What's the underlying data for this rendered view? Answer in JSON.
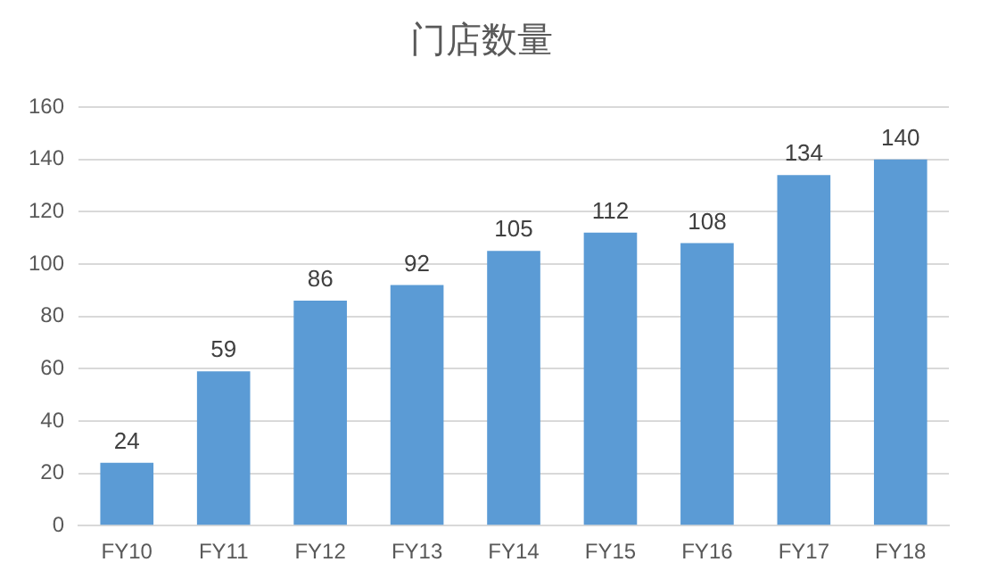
{
  "chart_data": {
    "type": "bar",
    "title": "门店数量",
    "categories": [
      "FY10",
      "FY11",
      "FY12",
      "FY13",
      "FY14",
      "FY15",
      "FY16",
      "FY17",
      "FY18"
    ],
    "values": [
      24,
      59,
      86,
      92,
      105,
      112,
      108,
      134,
      140
    ],
    "color": "#5b9bd5",
    "ylim": [
      0,
      160
    ],
    "yticks": [
      0,
      20,
      40,
      60,
      80,
      100,
      120,
      140,
      160
    ],
    "grid": "y",
    "legend": false,
    "data_labels": true
  }
}
